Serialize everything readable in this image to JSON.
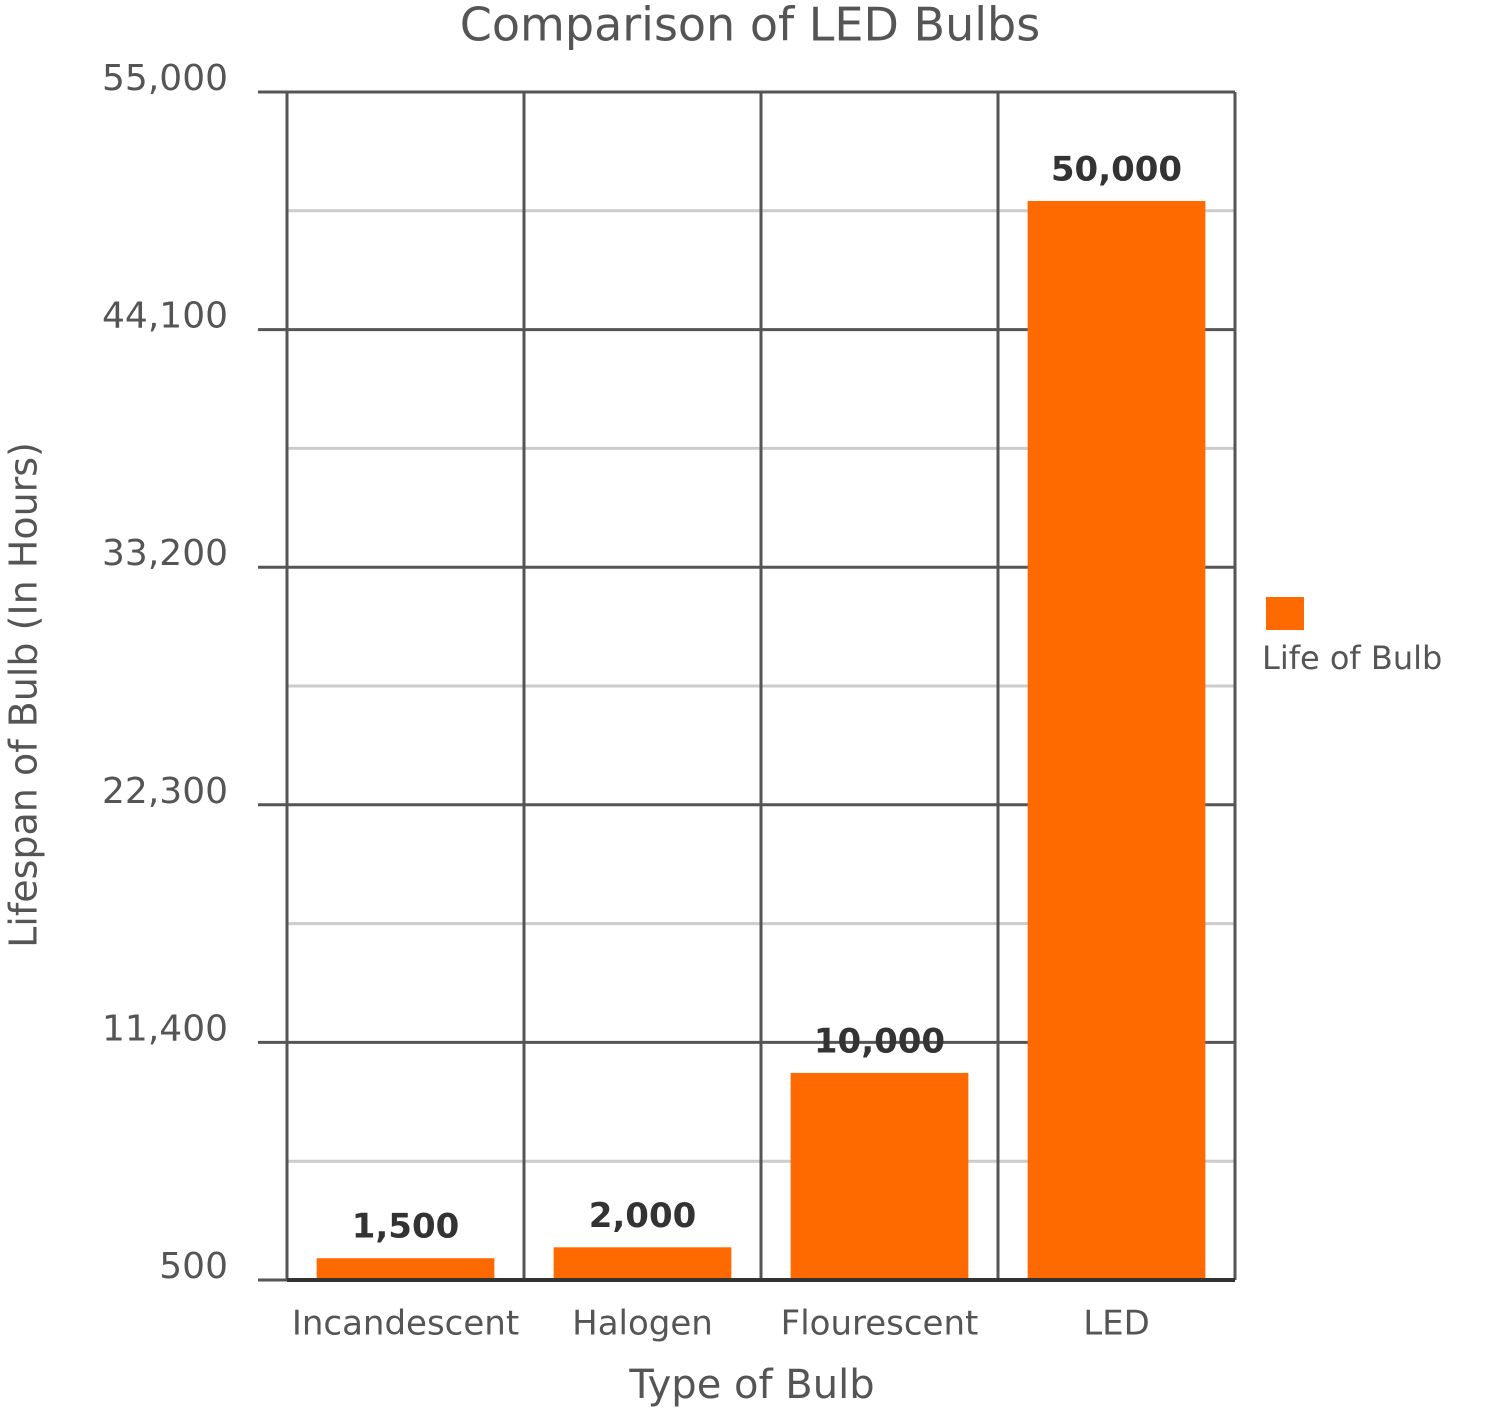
{
  "chart_data": {
    "type": "bar",
    "title": "Comparison of LED Bulbs",
    "x_label": "Type of Bulb",
    "y_label": "Lifespan of Bulb (In Hours)",
    "categories": [
      "Incandescent",
      "Halogen",
      "Flourescent",
      "LED"
    ],
    "series": [
      {
        "name": "Life of Bulb",
        "color": "#ff6a00",
        "values": [
          1500,
          2000,
          10000,
          50000
        ],
        "value_labels": [
          "1,500",
          "2,000",
          "10,000",
          "50,000"
        ]
      }
    ],
    "ylim": [
      500,
      55000
    ],
    "yticks": [
      500,
      {
        "value": 11400,
        "label": "11,400"
      },
      {
        "value": 22300,
        "label": "22,300"
      },
      {
        "value": 33200,
        "label": "33,200"
      },
      {
        "value": 44100,
        "label": "44,100"
      },
      {
        "value": 55000,
        "label": "55,000"
      }
    ],
    "grid": true,
    "legend": "right"
  }
}
